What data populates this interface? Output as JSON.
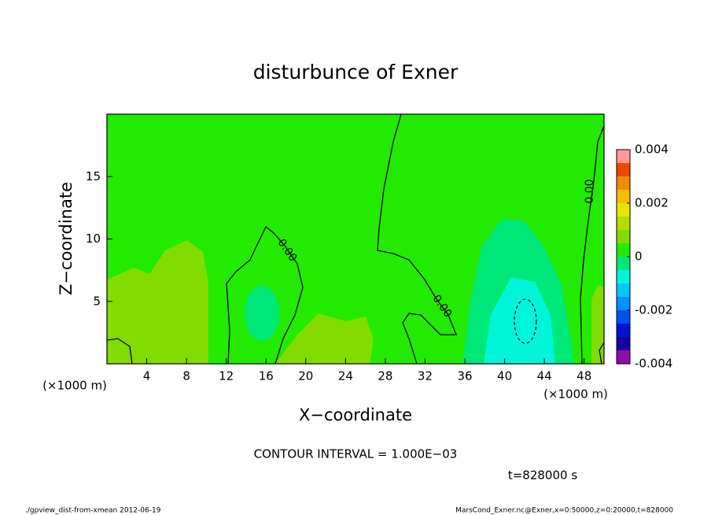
{
  "chart_data": {
    "type": "contour",
    "title": "disturbunce of Exner",
    "x_label": "X−coordinate",
    "y_label": "Z−coordinate",
    "x_unit": "(×1000 m)",
    "y_unit": "(×1000 m)",
    "xlim": [
      0,
      50
    ],
    "xticks": [
      4,
      8,
      12,
      16,
      20,
      24,
      28,
      32,
      36,
      40,
      44,
      48
    ],
    "ylim": [
      0,
      20
    ],
    "yticks": [
      5,
      10,
      15
    ],
    "levels": [
      -0.004,
      -0.0035,
      -0.003,
      -0.0025,
      -0.002,
      -0.0015,
      -0.001,
      -0.0005,
      0,
      0.0005,
      0.001,
      0.0015,
      0.002,
      0.0025,
      0.003,
      0.0035,
      0.004
    ],
    "colors": [
      "#8c10a8",
      "#1a00a0",
      "#0014d2",
      "#0050f0",
      "#0090ff",
      "#00c8ff",
      "#00f5d8",
      "#00e878",
      "#22ea00",
      "#82dc00",
      "#b4dc00",
      "#e6e600",
      "#f0c000",
      "#f08c00",
      "#f04600",
      "#ff9a9a"
    ],
    "colorbar_ticks": [
      -0.004,
      -0.002,
      0,
      0.002,
      0.004
    ],
    "contour_label": "0.00",
    "contour_interval": "CONTOUR INTERVAL = 1.000E−03",
    "time": "t=828000 s",
    "footer_left": "./gpview_dist-from-xmean   2012-06-19",
    "footer_right": "MarsCond_Exner.nc@Exner,x=0:50000,z=0:20000,t=828000"
  }
}
